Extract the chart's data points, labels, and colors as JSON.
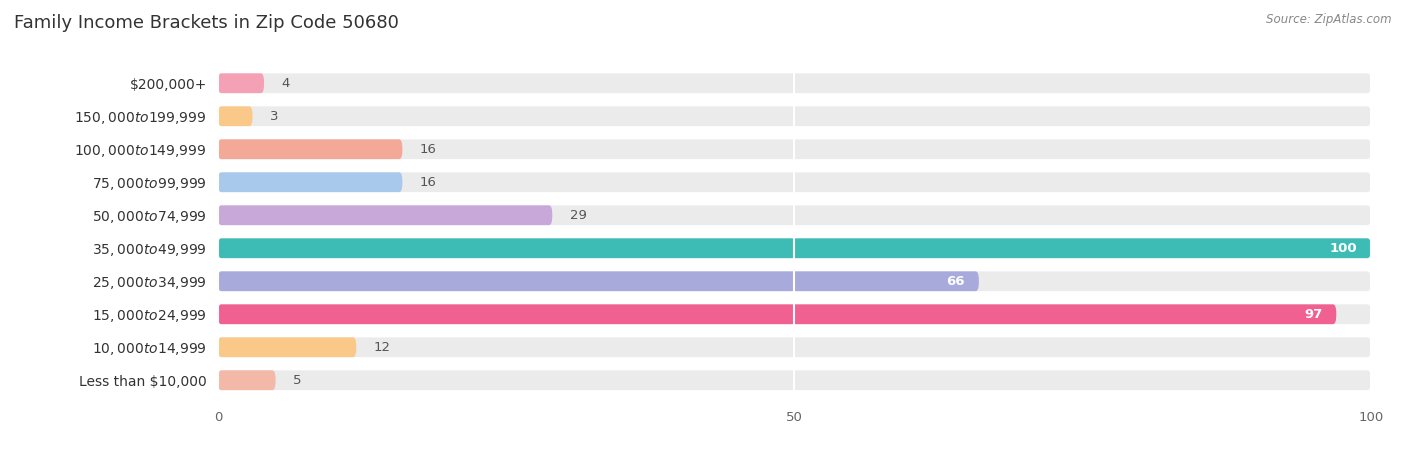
{
  "title": "Family Income Brackets in Zip Code 50680",
  "source": "Source: ZipAtlas.com",
  "categories": [
    "Less than $10,000",
    "$10,000 to $14,999",
    "$15,000 to $24,999",
    "$25,000 to $34,999",
    "$35,000 to $49,999",
    "$50,000 to $74,999",
    "$75,000 to $99,999",
    "$100,000 to $149,999",
    "$150,000 to $199,999",
    "$200,000+"
  ],
  "values": [
    4,
    3,
    16,
    16,
    29,
    100,
    66,
    97,
    12,
    5
  ],
  "bar_colors": [
    "#F4A0B5",
    "#FAC98A",
    "#F4A898",
    "#A8C8EC",
    "#C8A8D8",
    "#3CBCB4",
    "#A8AADC",
    "#F06090",
    "#FAC98A",
    "#F4B8A8"
  ],
  "xlim": [
    0,
    100
  ],
  "xticks": [
    0,
    50,
    100
  ],
  "background_color": "#ffffff",
  "bar_background_color": "#ebebeb",
  "title_fontsize": 13,
  "label_fontsize": 10,
  "value_fontsize": 9.5
}
